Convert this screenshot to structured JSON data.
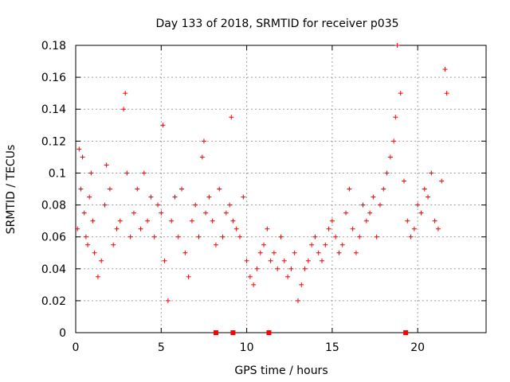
{
  "chart_data": {
    "type": "scatter",
    "title": "Day 133 of 2018, SRMTID for receiver p035",
    "xlabel": "GPS time / hours",
    "ylabel": "SRMTID / TECUs",
    "xlim": [
      0,
      24
    ],
    "ylim": [
      0,
      0.18
    ],
    "xticks": [
      0,
      5,
      10,
      15,
      20
    ],
    "xtick_labels": [
      "0",
      "5",
      "10",
      "15",
      "20"
    ],
    "yticks": [
      0,
      0.02,
      0.04,
      0.06,
      0.08,
      0.1,
      0.12,
      0.14,
      0.16,
      0.18
    ],
    "ytick_labels": [
      "0",
      "0.02",
      "0.04",
      "0.06",
      "0.08",
      "0.1",
      "0.12",
      "0.14",
      "0.16",
      "0.18"
    ],
    "grid": true,
    "series": [
      {
        "name": "SRMTID",
        "marker": "plus",
        "color": "#ff0000",
        "x": [
          0.1,
          0.2,
          0.3,
          0.4,
          0.5,
          0.6,
          0.7,
          0.8,
          0.9,
          1.0,
          1.1,
          1.3,
          1.5,
          1.7,
          1.8,
          2.0,
          2.2,
          2.4,
          2.6,
          2.8,
          2.9,
          3.0,
          3.2,
          3.4,
          3.6,
          3.8,
          4.0,
          4.2,
          4.4,
          4.6,
          4.8,
          5.0,
          5.1,
          5.2,
          5.4,
          5.6,
          5.8,
          6.0,
          6.2,
          6.4,
          6.6,
          6.8,
          7.0,
          7.2,
          7.4,
          7.5,
          7.6,
          7.8,
          8.0,
          8.2,
          8.4,
          8.6,
          8.8,
          9.0,
          9.1,
          9.2,
          9.4,
          9.6,
          9.8,
          10.0,
          10.2,
          10.4,
          10.6,
          10.8,
          11.0,
          11.2,
          11.4,
          11.6,
          11.8,
          12.0,
          12.2,
          12.4,
          12.6,
          12.8,
          13.0,
          13.2,
          13.4,
          13.6,
          13.8,
          14.0,
          14.2,
          14.4,
          14.6,
          14.8,
          15.0,
          15.2,
          15.4,
          15.6,
          15.8,
          16.0,
          16.2,
          16.4,
          16.6,
          16.8,
          17.0,
          17.2,
          17.4,
          17.6,
          17.8,
          18.0,
          18.2,
          18.4,
          18.6,
          18.7,
          18.8,
          19.0,
          19.2,
          19.4,
          19.6,
          19.8,
          20.0,
          20.2,
          20.4,
          20.6,
          20.8,
          21.0,
          21.2,
          21.4,
          21.6,
          21.7
        ],
        "y": [
          0.065,
          0.115,
          0.09,
          0.11,
          0.075,
          0.06,
          0.055,
          0.085,
          0.1,
          0.07,
          0.05,
          0.035,
          0.045,
          0.08,
          0.105,
          0.09,
          0.055,
          0.065,
          0.07,
          0.14,
          0.15,
          0.1,
          0.06,
          0.075,
          0.09,
          0.065,
          0.1,
          0.07,
          0.085,
          0.06,
          0.08,
          0.075,
          0.13,
          0.045,
          0.02,
          0.07,
          0.085,
          0.06,
          0.09,
          0.05,
          0.035,
          0.07,
          0.08,
          0.06,
          0.11,
          0.12,
          0.075,
          0.085,
          0.07,
          0.055,
          0.09,
          0.06,
          0.075,
          0.08,
          0.135,
          0.07,
          0.065,
          0.06,
          0.085,
          0.045,
          0.035,
          0.03,
          0.04,
          0.05,
          0.055,
          0.065,
          0.045,
          0.05,
          0.04,
          0.06,
          0.045,
          0.035,
          0.04,
          0.05,
          0.02,
          0.03,
          0.04,
          0.045,
          0.055,
          0.06,
          0.05,
          0.045,
          0.055,
          0.065,
          0.07,
          0.06,
          0.05,
          0.055,
          0.075,
          0.09,
          0.065,
          0.05,
          0.06,
          0.08,
          0.07,
          0.075,
          0.085,
          0.06,
          0.08,
          0.09,
          0.1,
          0.11,
          0.12,
          0.135,
          0.18,
          0.15,
          0.095,
          0.07,
          0.06,
          0.065,
          0.08,
          0.075,
          0.09,
          0.085,
          0.1,
          0.07,
          0.065,
          0.095,
          0.165,
          0.15
        ]
      },
      {
        "name": "markers",
        "marker": "square",
        "color": "#ff0000",
        "x": [
          8.2,
          9.2,
          11.3,
          19.3
        ],
        "y": [
          0,
          0,
          0,
          0
        ]
      }
    ]
  }
}
